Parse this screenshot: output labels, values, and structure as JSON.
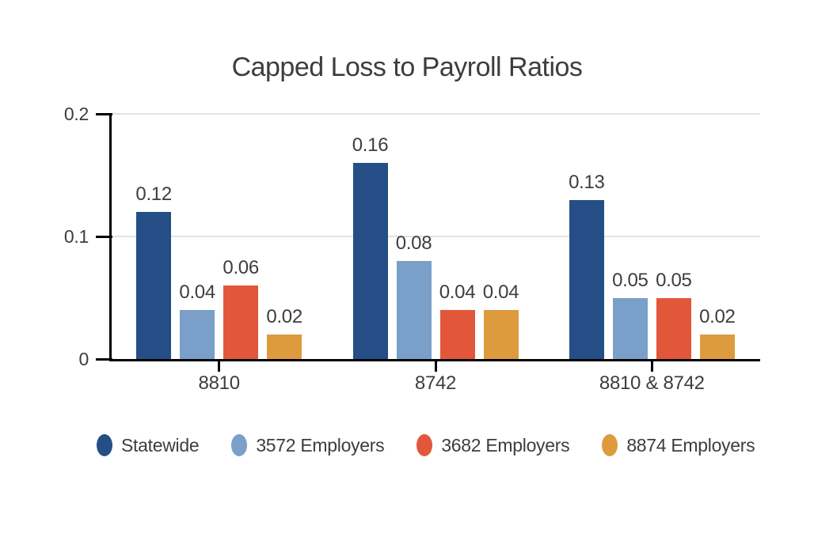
{
  "chart_data": {
    "type": "bar",
    "title": "Capped Loss to Payroll Ratios",
    "categories": [
      "8810",
      "8742",
      "8810 & 8742"
    ],
    "series": [
      {
        "name": "Statewide",
        "color": "#254E86",
        "values": [
          0.12,
          0.16,
          0.13
        ]
      },
      {
        "name": "3572 Employers",
        "color": "#7A9FC9",
        "values": [
          0.04,
          0.08,
          0.05
        ]
      },
      {
        "name": "3682 Employers",
        "color": "#E2573A",
        "values": [
          0.06,
          0.04,
          0.05
        ]
      },
      {
        "name": "8874 Employers",
        "color": "#DE9B3E",
        "values": [
          0.02,
          0.04,
          0.02
        ]
      }
    ],
    "yaxis": {
      "labels": [
        "0",
        "0.1",
        "0.2"
      ],
      "values": [
        0,
        0.1,
        0.2
      ]
    },
    "ylim": [
      0,
      0.2
    ],
    "xlabel": "",
    "ylabel": "",
    "grid": true,
    "legend_position": "bottom",
    "value_label_decimals": 2,
    "colors": {
      "text": "#3D3D3D",
      "axis": "#000000",
      "gridline": "#E2E2E2",
      "background": "#FFFFFF"
    }
  }
}
